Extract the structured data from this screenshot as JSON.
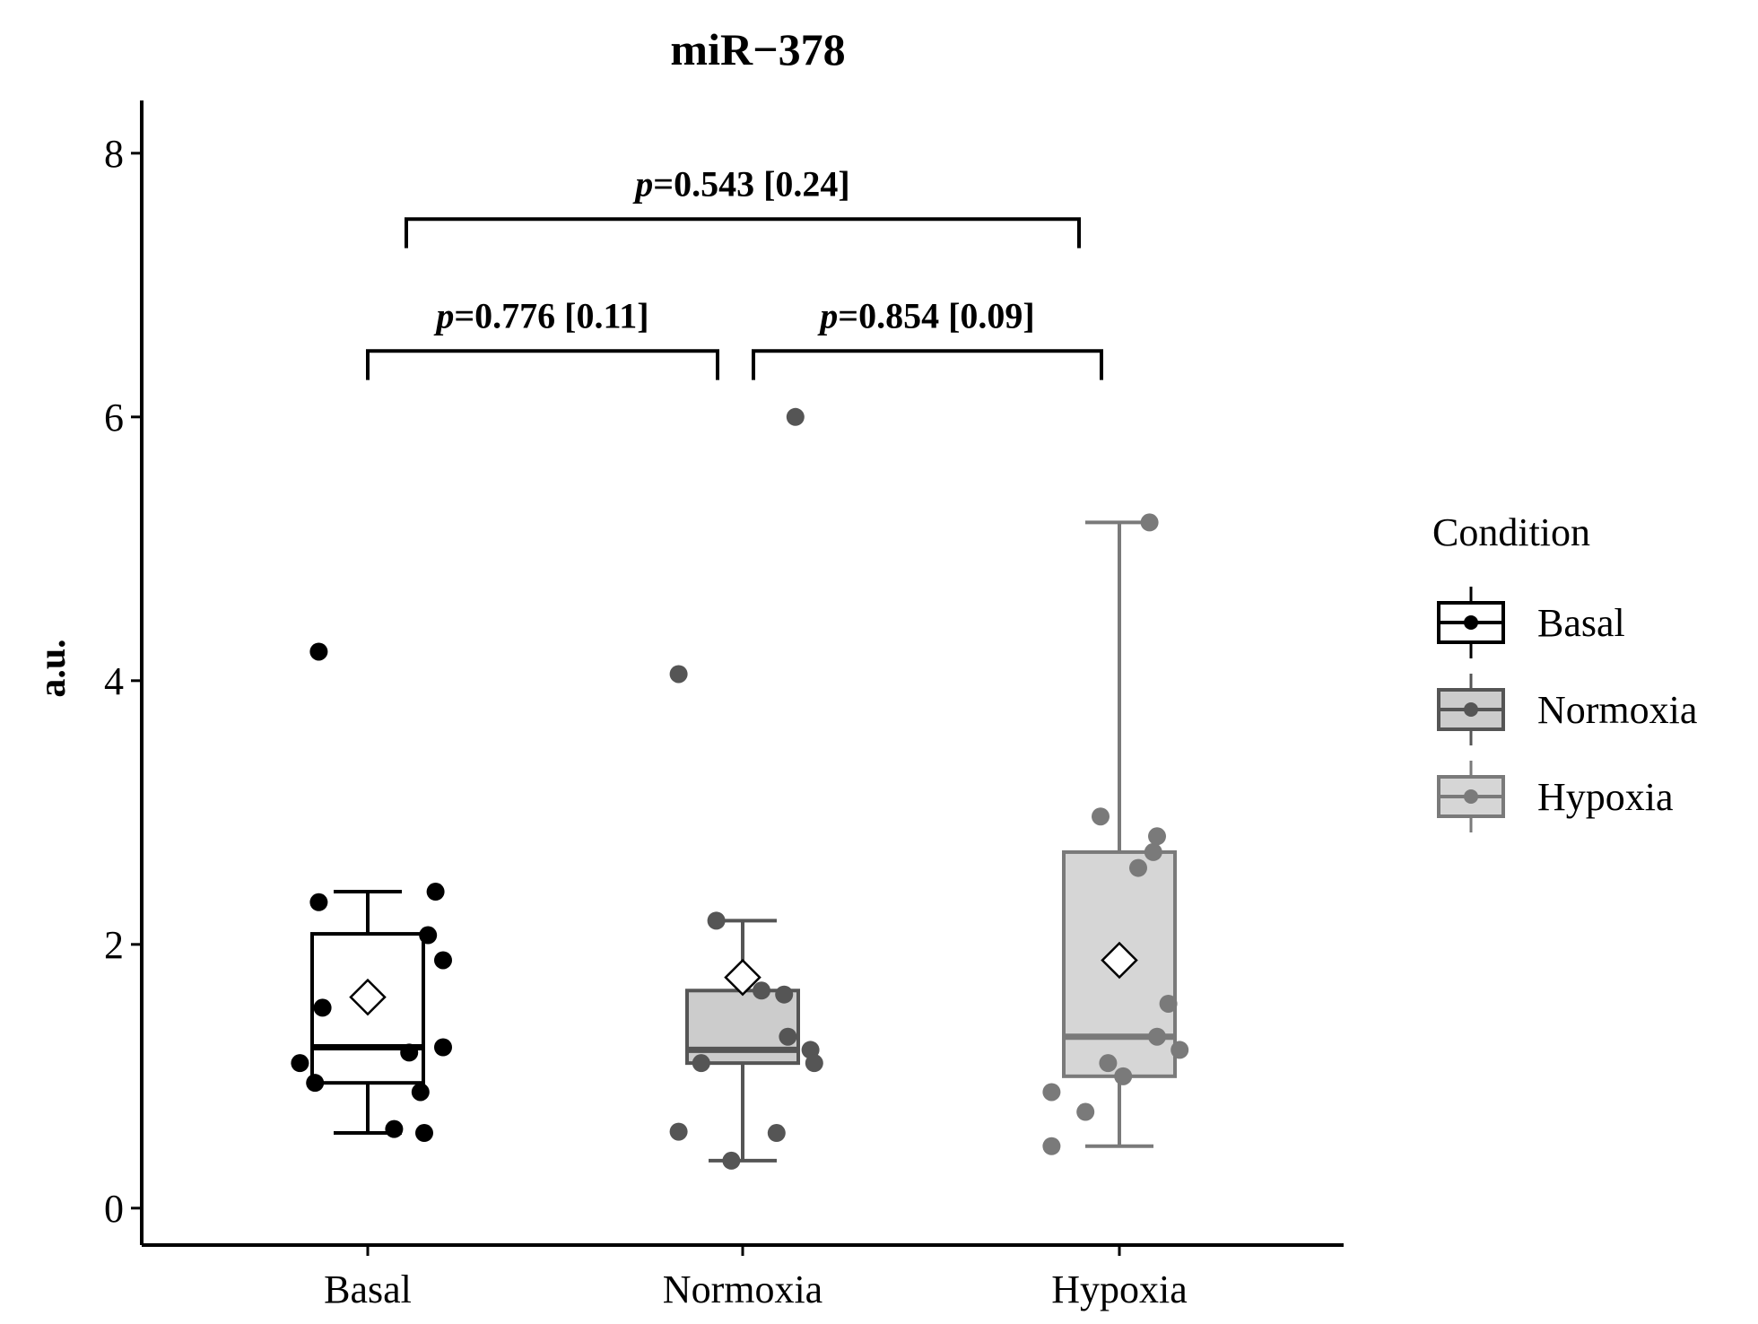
{
  "chart_data": {
    "type": "box",
    "title": "miR−378",
    "xlabel": "",
    "ylabel": "a.u.",
    "ylim": [
      -0.28,
      8.4
    ],
    "yticks": [
      0,
      2,
      4,
      6,
      8
    ],
    "categories": [
      "Basal",
      "Normoxia",
      "Hypoxia"
    ],
    "groups": [
      {
        "name": "Basal",
        "color": "#000000",
        "fill": "#ffffff",
        "box": {
          "q1": 0.95,
          "median": 1.22,
          "q3": 2.08,
          "whisker_low": 0.57,
          "whisker_high": 2.4
        },
        "mean": 1.6,
        "points": [
          {
            "dx": -0.13,
            "y": 4.22
          },
          {
            "dx": -0.13,
            "y": 2.32
          },
          {
            "dx": 0.18,
            "y": 2.4
          },
          {
            "dx": 0.16,
            "y": 2.07
          },
          {
            "dx": 0.2,
            "y": 1.88
          },
          {
            "dx": -0.12,
            "y": 1.52
          },
          {
            "dx": 0.11,
            "y": 1.18
          },
          {
            "dx": 0.2,
            "y": 1.22
          },
          {
            "dx": -0.18,
            "y": 1.1
          },
          {
            "dx": -0.14,
            "y": 0.95
          },
          {
            "dx": 0.14,
            "y": 0.88
          },
          {
            "dx": 0.07,
            "y": 0.6
          },
          {
            "dx": 0.15,
            "y": 0.57
          }
        ]
      },
      {
        "name": "Normoxia",
        "color": "#555555",
        "fill": "#cccccc",
        "box": {
          "q1": 1.1,
          "median": 1.2,
          "q3": 1.65,
          "whisker_low": 0.36,
          "whisker_high": 2.18
        },
        "mean": 1.75,
        "points": [
          {
            "dx": 0.14,
            "y": 6.0
          },
          {
            "dx": -0.17,
            "y": 4.05
          },
          {
            "dx": -0.07,
            "y": 2.18
          },
          {
            "dx": 0.05,
            "y": 1.65
          },
          {
            "dx": 0.11,
            "y": 1.62
          },
          {
            "dx": 0.12,
            "y": 1.3
          },
          {
            "dx": 0.18,
            "y": 1.2
          },
          {
            "dx": -0.11,
            "y": 1.1
          },
          {
            "dx": 0.19,
            "y": 1.1
          },
          {
            "dx": -0.17,
            "y": 0.58
          },
          {
            "dx": 0.09,
            "y": 0.57
          },
          {
            "dx": -0.03,
            "y": 0.36
          }
        ]
      },
      {
        "name": "Hypoxia",
        "color": "#7a7a7a",
        "fill": "#d6d6d6",
        "box": {
          "q1": 1.0,
          "median": 1.3,
          "q3": 2.7,
          "whisker_low": 0.47,
          "whisker_high": 5.2
        },
        "mean": 1.88,
        "points": [
          {
            "dx": 0.08,
            "y": 5.2
          },
          {
            "dx": -0.05,
            "y": 2.97
          },
          {
            "dx": 0.1,
            "y": 2.82
          },
          {
            "dx": 0.09,
            "y": 2.7
          },
          {
            "dx": 0.05,
            "y": 2.58
          },
          {
            "dx": 0.13,
            "y": 1.55
          },
          {
            "dx": 0.1,
            "y": 1.3
          },
          {
            "dx": 0.16,
            "y": 1.2
          },
          {
            "dx": -0.03,
            "y": 1.1
          },
          {
            "dx": 0.01,
            "y": 1.0
          },
          {
            "dx": -0.18,
            "y": 0.88
          },
          {
            "dx": -0.09,
            "y": 0.73
          },
          {
            "dx": -0.18,
            "y": 0.47
          }
        ]
      }
    ],
    "comparisons": [
      {
        "from": 0,
        "to": 1,
        "p_label": "p",
        "text": "=0.776 [0.11]",
        "bracket_y": 6.5,
        "tick_depth": 0.22
      },
      {
        "from": 1,
        "to": 2,
        "p_label": "p",
        "text": "=0.854 [0.09]",
        "bracket_y": 6.5,
        "tick_depth": 0.22
      },
      {
        "from": 0,
        "to": 2,
        "p_label": "p",
        "text": "=0.543 [0.24]",
        "bracket_y": 7.5,
        "tick_depth": 0.22
      }
    ],
    "legend": {
      "title": "Condition",
      "position": "right",
      "entries": [
        "Basal",
        "Normoxia",
        "Hypoxia"
      ]
    }
  }
}
